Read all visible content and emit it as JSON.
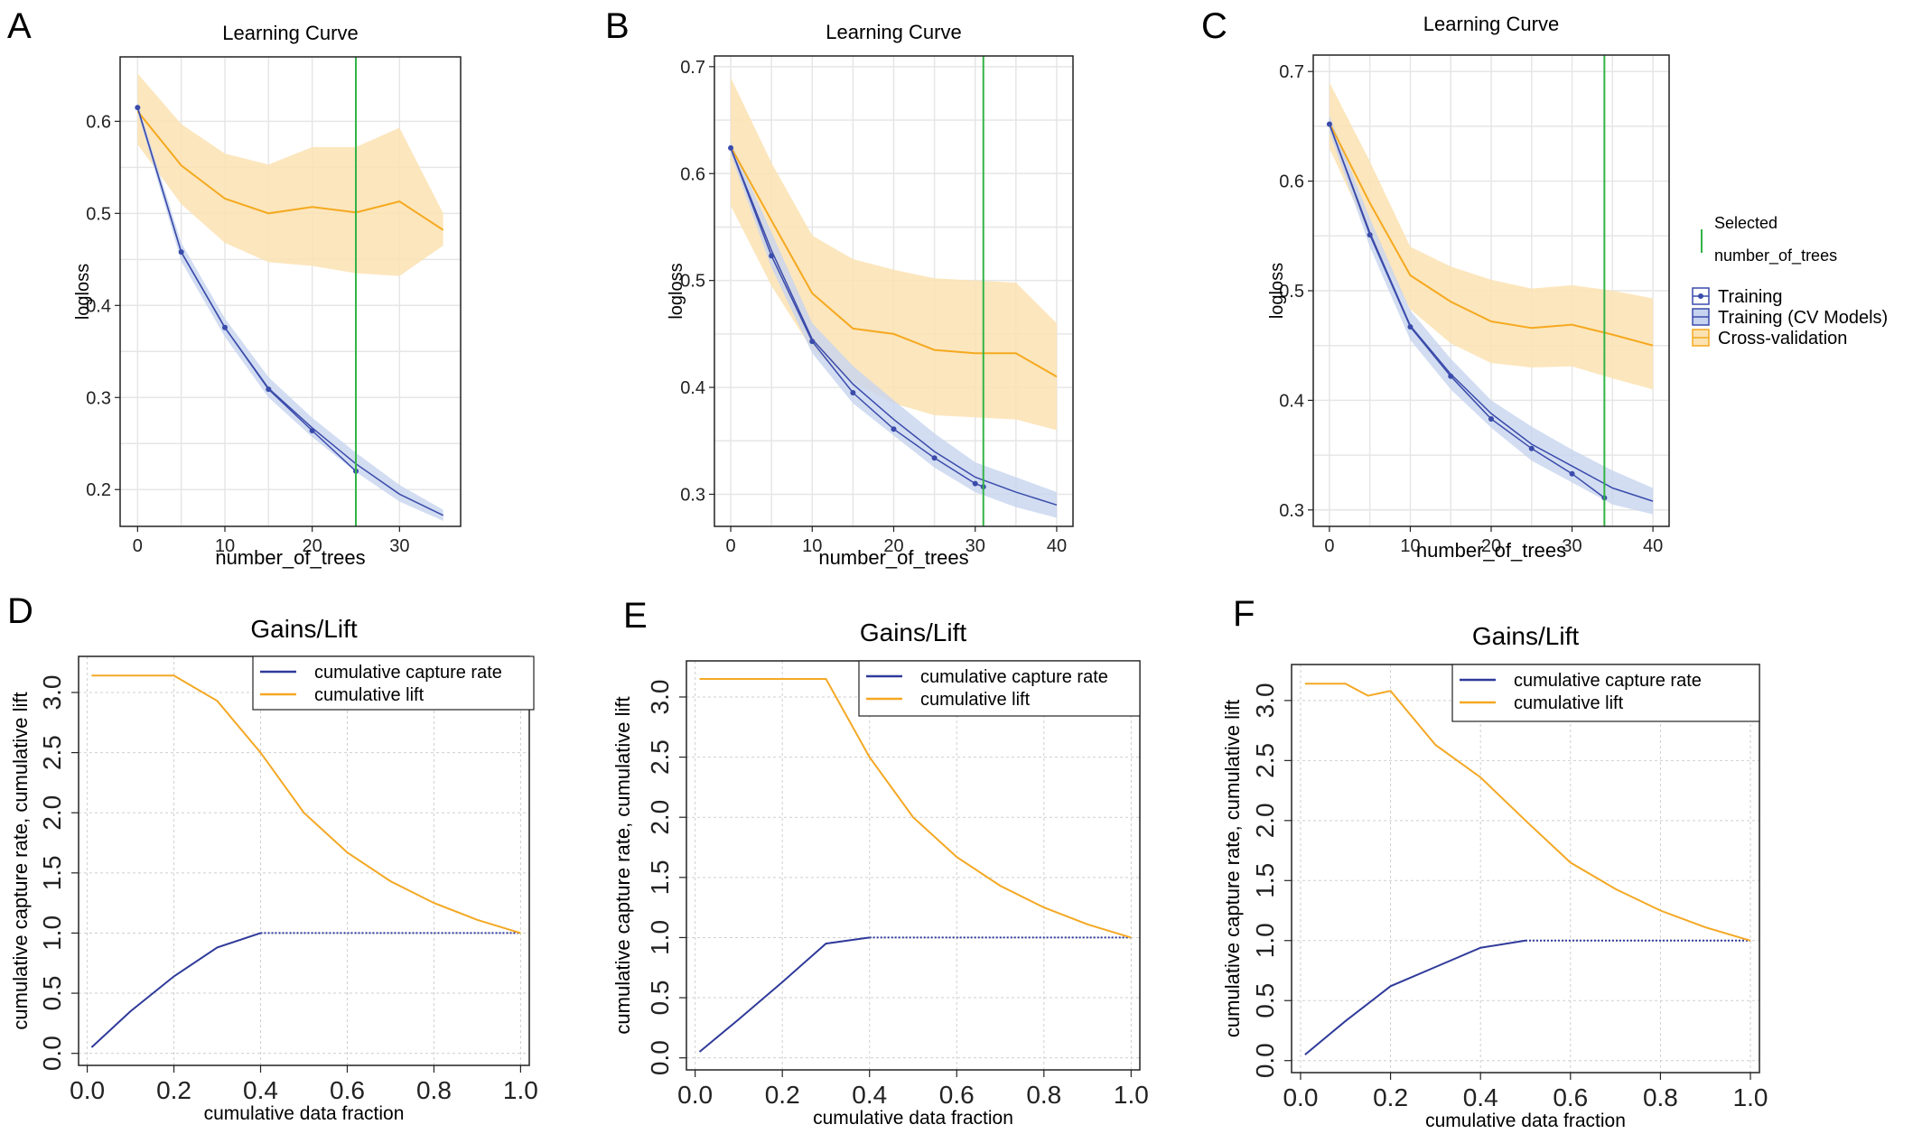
{
  "chart_data": [
    {
      "panel_letter": "A",
      "type": "line",
      "title": "Learning Curve",
      "xlabel": "number_of_trees",
      "ylabel": "logloss",
      "xlim": [
        -2,
        37
      ],
      "ylim": [
        0.16,
        0.67
      ],
      "xticks": [
        0,
        10,
        20,
        30
      ],
      "yticks": [
        0.2,
        0.3,
        0.4,
        0.5,
        0.6
      ],
      "grid": true,
      "selected_x": 25,
      "series": [
        {
          "name": "Training",
          "x": [
            0,
            5,
            10,
            15,
            20,
            25
          ],
          "y": [
            0.615,
            0.458,
            0.376,
            0.309,
            0.264,
            0.22
          ]
        },
        {
          "name": "Training (CV Models)",
          "x": [
            0,
            5,
            10,
            15,
            20,
            25,
            30,
            35
          ],
          "y": [
            0.615,
            0.458,
            0.376,
            0.31,
            0.267,
            0.228,
            0.195,
            0.172
          ],
          "lower": [
            0.61,
            0.448,
            0.366,
            0.3,
            0.257,
            0.219,
            0.187,
            0.166
          ],
          "upper": [
            0.62,
            0.468,
            0.386,
            0.322,
            0.278,
            0.24,
            0.205,
            0.178
          ]
        },
        {
          "name": "Cross-validation",
          "x": [
            0,
            5,
            10,
            15,
            20,
            25,
            30,
            35
          ],
          "y": [
            0.611,
            0.552,
            0.516,
            0.5,
            0.507,
            0.501,
            0.513,
            0.482
          ],
          "lower": [
            0.575,
            0.51,
            0.468,
            0.447,
            0.443,
            0.435,
            0.432,
            0.465
          ],
          "upper": [
            0.652,
            0.597,
            0.565,
            0.553,
            0.572,
            0.572,
            0.593,
            0.5
          ]
        }
      ]
    },
    {
      "panel_letter": "B",
      "type": "line",
      "title": "Learning Curve",
      "xlabel": "number_of_trees",
      "ylabel": "logloss",
      "xlim": [
        -2,
        42
      ],
      "ylim": [
        0.27,
        0.71
      ],
      "xticks": [
        0,
        10,
        20,
        30,
        40
      ],
      "yticks": [
        0.3,
        0.4,
        0.5,
        0.6,
        0.7
      ],
      "grid": true,
      "selected_x": 31,
      "series": [
        {
          "name": "Training",
          "x": [
            0,
            5,
            10,
            15,
            20,
            25,
            30,
            31
          ],
          "y": [
            0.624,
            0.523,
            0.443,
            0.395,
            0.361,
            0.334,
            0.31,
            0.307
          ]
        },
        {
          "name": "Training (CV Models)",
          "x": [
            0,
            5,
            10,
            15,
            20,
            25,
            30,
            35,
            40
          ],
          "y": [
            0.624,
            0.528,
            0.445,
            0.403,
            0.37,
            0.34,
            0.316,
            0.302,
            0.29
          ],
          "lower": [
            0.618,
            0.512,
            0.432,
            0.385,
            0.355,
            0.325,
            0.302,
            0.288,
            0.278
          ],
          "upper": [
            0.63,
            0.545,
            0.46,
            0.42,
            0.388,
            0.357,
            0.33,
            0.316,
            0.302
          ]
        },
        {
          "name": "Cross-validation",
          "x": [
            0,
            5,
            10,
            15,
            20,
            25,
            30,
            35,
            40
          ],
          "y": [
            0.625,
            0.556,
            0.488,
            0.455,
            0.45,
            0.435,
            0.432,
            0.432,
            0.41
          ],
          "lower": [
            0.57,
            0.495,
            0.435,
            0.405,
            0.385,
            0.374,
            0.372,
            0.37,
            0.36
          ],
          "upper": [
            0.69,
            0.61,
            0.542,
            0.52,
            0.51,
            0.502,
            0.5,
            0.498,
            0.46
          ]
        }
      ]
    },
    {
      "panel_letter": "C",
      "type": "line",
      "title": "Learning Curve",
      "xlabel": "number_of_trees",
      "ylabel": "logloss",
      "xlim": [
        -2,
        42
      ],
      "ylim": [
        0.285,
        0.715
      ],
      "xticks": [
        0,
        10,
        20,
        30,
        40
      ],
      "yticks": [
        0.3,
        0.4,
        0.5,
        0.6,
        0.7
      ],
      "grid": true,
      "selected_x": 34,
      "series": [
        {
          "name": "Training",
          "x": [
            0,
            5,
            10,
            15,
            20,
            25,
            30,
            34
          ],
          "y": [
            0.652,
            0.551,
            0.467,
            0.422,
            0.383,
            0.356,
            0.333,
            0.311
          ]
        },
        {
          "name": "Training (CV Models)",
          "x": [
            0,
            5,
            10,
            15,
            20,
            25,
            30,
            35,
            40
          ],
          "y": [
            0.652,
            0.553,
            0.468,
            0.424,
            0.388,
            0.36,
            0.34,
            0.32,
            0.308
          ],
          "lower": [
            0.645,
            0.54,
            0.455,
            0.41,
            0.375,
            0.345,
            0.325,
            0.305,
            0.296
          ],
          "upper": [
            0.66,
            0.566,
            0.482,
            0.438,
            0.4,
            0.376,
            0.355,
            0.336,
            0.32
          ]
        },
        {
          "name": "Cross-validation",
          "x": [
            0,
            5,
            10,
            15,
            20,
            25,
            30,
            35,
            40
          ],
          "y": [
            0.653,
            0.58,
            0.514,
            0.49,
            0.472,
            0.466,
            0.469,
            0.46,
            0.45
          ],
          "lower": [
            0.63,
            0.55,
            0.483,
            0.452,
            0.434,
            0.43,
            0.431,
            0.42,
            0.41
          ],
          "upper": [
            0.69,
            0.618,
            0.54,
            0.522,
            0.51,
            0.502,
            0.505,
            0.5,
            0.493
          ]
        }
      ]
    },
    {
      "panel_letter": "D",
      "type": "line",
      "title": "Gains/Lift",
      "xlabel": "cumulative data fraction",
      "ylabel": "cumulative capture rate, cumulative lift",
      "xlim": [
        -0.02,
        1.02
      ],
      "ylim": [
        -0.1,
        3.3
      ],
      "xticks": [
        0.0,
        0.2,
        0.4,
        0.6,
        0.8,
        1.0
      ],
      "yticks": [
        0.0,
        0.5,
        1.0,
        1.5,
        2.0,
        2.5,
        3.0
      ],
      "grid": true,
      "legend_position": "top-right",
      "series": [
        {
          "name": "cumulative capture rate",
          "x": [
            0.01,
            0.1,
            0.2,
            0.3,
            0.4,
            0.5,
            0.6,
            0.7,
            0.8,
            0.9,
            1.0
          ],
          "y": [
            0.05,
            0.35,
            0.64,
            0.88,
            1.0,
            1.0,
            1.0,
            1.0,
            1.0,
            1.0,
            1.0
          ]
        },
        {
          "name": "cumulative lift",
          "x": [
            0.01,
            0.1,
            0.2,
            0.3,
            0.4,
            0.5,
            0.6,
            0.7,
            0.8,
            0.9,
            1.0
          ],
          "y": [
            3.14,
            3.14,
            3.14,
            2.93,
            2.5,
            2.0,
            1.67,
            1.43,
            1.25,
            1.11,
            1.0
          ]
        }
      ]
    },
    {
      "panel_letter": "E",
      "type": "line",
      "title": "Gains/Lift",
      "xlabel": "cumulative data fraction",
      "ylabel": "cumulative capture rate, cumulative lift",
      "xlim": [
        -0.02,
        1.02
      ],
      "ylim": [
        -0.1,
        3.3
      ],
      "xticks": [
        0.0,
        0.2,
        0.4,
        0.6,
        0.8,
        1.0
      ],
      "yticks": [
        0.0,
        0.5,
        1.0,
        1.5,
        2.0,
        2.5,
        3.0
      ],
      "grid": true,
      "legend_position": "top-right",
      "series": [
        {
          "name": "cumulative capture rate",
          "x": [
            0.01,
            0.1,
            0.2,
            0.3,
            0.4,
            0.5,
            0.6,
            0.7,
            0.8,
            0.9,
            1.0
          ],
          "y": [
            0.05,
            0.32,
            0.63,
            0.95,
            1.0,
            1.0,
            1.0,
            1.0,
            1.0,
            1.0,
            1.0
          ]
        },
        {
          "name": "cumulative lift",
          "x": [
            0.01,
            0.1,
            0.2,
            0.3,
            0.4,
            0.5,
            0.6,
            0.7,
            0.8,
            0.9,
            1.0
          ],
          "y": [
            3.15,
            3.15,
            3.15,
            3.15,
            2.5,
            2.0,
            1.67,
            1.43,
            1.25,
            1.11,
            1.0
          ]
        }
      ]
    },
    {
      "panel_letter": "F",
      "type": "line",
      "title": "Gains/Lift",
      "xlabel": "cumulative data fraction",
      "ylabel": "cumulative capture rate, cumulative lift",
      "xlim": [
        -0.02,
        1.02
      ],
      "ylim": [
        -0.1,
        3.3
      ],
      "xticks": [
        0.0,
        0.2,
        0.4,
        0.6,
        0.8,
        1.0
      ],
      "yticks": [
        0.0,
        0.5,
        1.0,
        1.5,
        2.0,
        2.5,
        3.0
      ],
      "grid": true,
      "legend_position": "top-right",
      "series": [
        {
          "name": "cumulative capture rate",
          "x": [
            0.01,
            0.1,
            0.2,
            0.3,
            0.4,
            0.5,
            0.6,
            0.7,
            0.8,
            0.9,
            1.0
          ],
          "y": [
            0.05,
            0.33,
            0.62,
            0.78,
            0.94,
            1.0,
            1.0,
            1.0,
            1.0,
            1.0,
            1.0
          ]
        },
        {
          "name": "cumulative lift",
          "x": [
            0.01,
            0.1,
            0.15,
            0.2,
            0.3,
            0.4,
            0.5,
            0.6,
            0.7,
            0.8,
            0.9,
            1.0
          ],
          "y": [
            3.14,
            3.14,
            3.04,
            3.08,
            2.63,
            2.36,
            2.0,
            1.65,
            1.43,
            1.25,
            1.11,
            1.0
          ]
        }
      ]
    }
  ],
  "learning_curve_legend": {
    "selected_title": "Selected",
    "selected_subtitle": "number_of_trees",
    "entries": [
      "Training",
      "Training (CV Models)",
      "Cross-validation"
    ]
  },
  "colors": {
    "training": "#3b4bab",
    "training_band": "#c7d4ef",
    "cross_validation": "#f5a91f",
    "cv_band": "#fbe2b2",
    "selected_line": "#33b447",
    "capture_rate": "#2f3a9a",
    "lift": "#f4a824",
    "grid": "#e6e6e6"
  }
}
